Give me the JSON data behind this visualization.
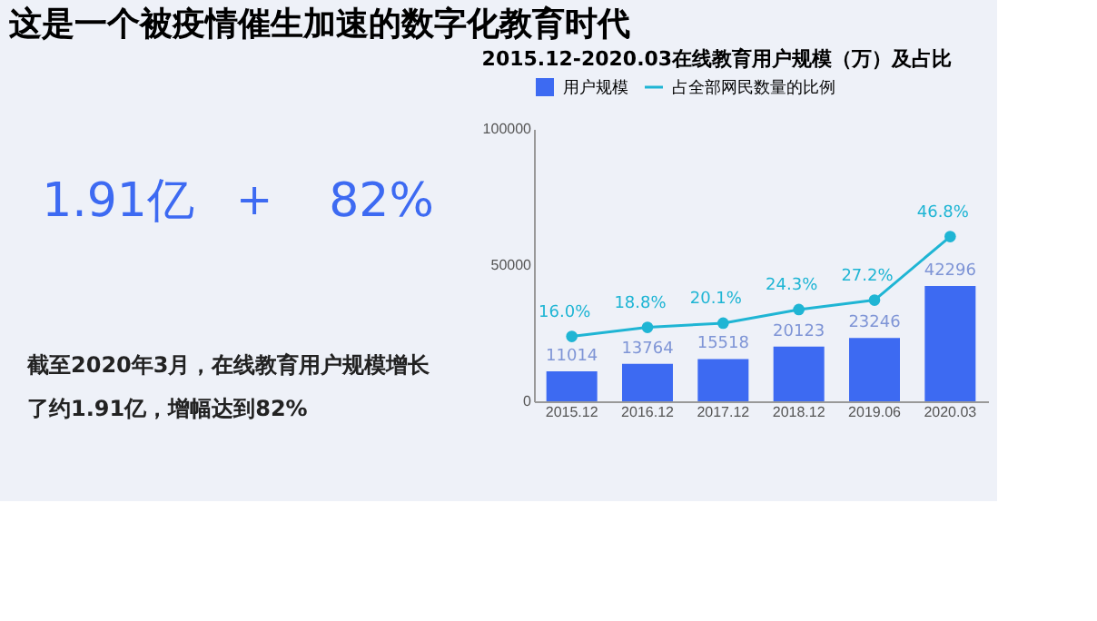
{
  "chart_data": [
    {
      "type": "other",
      "title": "这是一个被疫情催生加速的数字化教育时代",
      "annotations": [
        "1.91亿",
        "+",
        "82%",
        "截至2020年3月，在线教育用户规模增长了约1.91亿，增幅达到82%"
      ]
    },
    {
      "type": "bar",
      "title": "2015.12-2020.03在线教育用户规模（万）及占比",
      "categories": [
        "2015.12",
        "2016.12",
        "2017.12",
        "2018.12",
        "2019.06",
        "2020.03"
      ],
      "series": [
        {
          "name": "用户规模",
          "color": "#3d6af2",
          "values": [
            11014,
            13764,
            15518,
            20123,
            23246,
            42296
          ]
        },
        {
          "name": "占全部网民数量的比例",
          "type": "line",
          "axis": "y2",
          "color": "#1fb5d4",
          "marker": "circle",
          "values": [
            16.0,
            18.8,
            20.1,
            24.3,
            27.2,
            46.8
          ],
          "value_labels": [
            "16.0%",
            "18.8%",
            "20.1%",
            "24.3%",
            "27.2%",
            "46.8%"
          ]
        }
      ],
      "ylim": [
        0,
        100000
      ],
      "yticks": [
        0,
        50000,
        100000
      ],
      "y2lim": [
        -4,
        80
      ],
      "data_labels": true,
      "legend": "top left",
      "grid": false
    }
  ]
}
